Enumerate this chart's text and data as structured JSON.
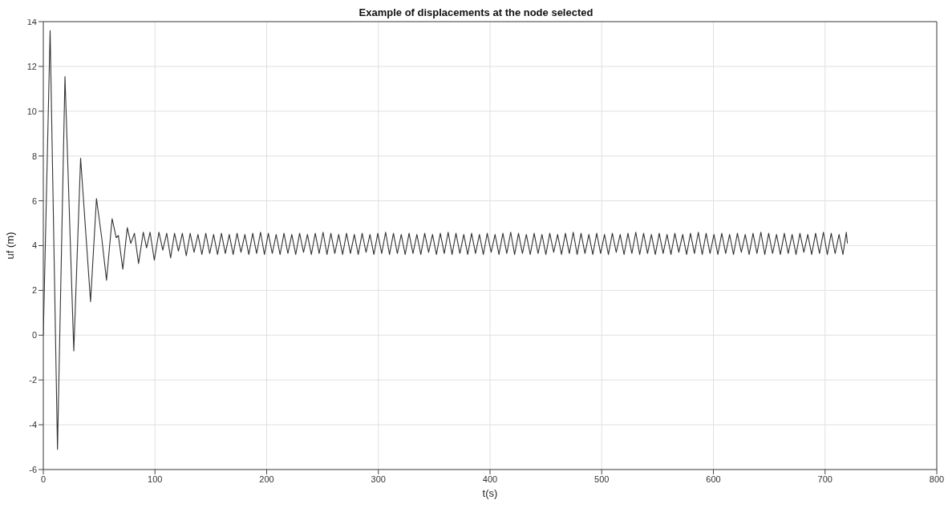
{
  "chart_data": {
    "type": "line",
    "title": "Example of displacements at the node selected",
    "xlabel": "t(s)",
    "ylabel": "uf (m)",
    "xlim": [
      0,
      800
    ],
    "xticks": [
      0,
      100,
      200,
      300,
      400,
      500,
      600,
      700,
      800
    ],
    "ylim": [
      -6,
      14
    ],
    "yticks": [
      -6,
      -4,
      -2,
      0,
      2,
      4,
      6,
      8,
      10,
      12,
      14
    ],
    "grid": true,
    "marker": "none",
    "line_style": "solid",
    "series": [
      {
        "color": "#333333",
        "x": [
          0,
          6.1,
          12.7,
          19.4,
          27.3,
          33.4,
          42.3,
          47.6,
          52.3,
          56.6,
          61.6,
          65.3,
          67.2,
          71.2,
          75.2,
          78.3,
          81.6,
          85.3,
          89.5,
          92.5,
          95.6,
          99.4,
          103.5,
          107,
          110.5,
          114,
          117.5,
          121,
          124.5,
          128,
          131.5,
          135,
          138.5,
          142,
          145.5,
          149,
          152.5,
          156,
          159.5,
          163,
          166.5,
          170,
          173.5,
          177,
          180.5,
          184,
          187.5,
          191,
          194.5,
          198,
          201.5,
          205,
          208.5,
          212,
          215.5,
          219,
          222.5,
          226,
          229.5,
          233,
          236.5,
          240,
          243.5,
          247,
          250.5,
          254,
          257.5,
          261,
          264.5,
          268,
          271.5,
          275,
          278.5,
          282,
          285.5,
          289,
          292.5,
          296,
          299.5,
          303,
          306.5,
          310,
          313.5,
          317,
          320.5,
          324,
          327.5,
          331,
          334.5,
          338,
          341.5,
          345,
          348.5,
          352,
          355.5,
          359,
          362.5,
          366,
          369.5,
          373,
          376.5,
          380,
          383.5,
          387,
          390.5,
          394,
          397.5,
          401,
          404.5,
          408,
          411.5,
          415,
          418.5,
          422,
          425.5,
          429,
          432.5,
          436,
          439.5,
          443,
          446.5,
          450,
          453.5,
          457,
          460.5,
          464,
          467.5,
          471,
          474.5,
          478,
          481.5,
          485,
          488.5,
          492,
          495.5,
          499,
          502.5,
          506,
          509.5,
          513,
          516.5,
          520,
          523.5,
          527,
          530.5,
          534,
          537.5,
          541,
          544.5,
          548,
          551.5,
          555,
          558.5,
          562,
          565.5,
          569,
          572.5,
          576,
          579.5,
          583,
          586.5,
          590,
          593.5,
          597,
          600.5,
          604,
          607.5,
          611,
          614.5,
          618,
          621.5,
          625,
          628.5,
          632,
          635.5,
          639,
          642.5,
          646,
          649.5,
          653,
          656.5,
          660,
          663.5,
          667,
          670.5,
          674,
          677.5,
          681,
          684.5,
          688,
          691.5,
          695,
          698.5,
          702,
          705.5,
          709,
          712.5,
          716,
          719,
          720
        ],
        "values": [
          0,
          13.6,
          -5.1,
          11.55,
          -0.7,
          7.9,
          1.5,
          6.1,
          4.35,
          2.45,
          5.2,
          4.35,
          4.45,
          2.95,
          4.8,
          4.1,
          4.55,
          3.2,
          4.6,
          3.9,
          4.6,
          3.35,
          4.6,
          3.8,
          4.55,
          3.45,
          4.55,
          3.75,
          4.55,
          3.55,
          4.55,
          3.7,
          4.5,
          3.6,
          4.55,
          3.65,
          4.5,
          3.6,
          4.55,
          3.65,
          4.5,
          3.6,
          4.55,
          3.7,
          4.5,
          3.6,
          4.55,
          3.65,
          4.6,
          3.6,
          4.55,
          3.65,
          4.5,
          3.6,
          4.55,
          3.65,
          4.5,
          3.6,
          4.55,
          3.7,
          4.5,
          3.6,
          4.55,
          3.65,
          4.6,
          3.6,
          4.55,
          3.65,
          4.5,
          3.6,
          4.55,
          3.65,
          4.5,
          3.6,
          4.55,
          3.7,
          4.5,
          3.6,
          4.55,
          3.65,
          4.6,
          3.6,
          4.55,
          3.65,
          4.5,
          3.6,
          4.55,
          3.65,
          4.5,
          3.6,
          4.55,
          3.7,
          4.5,
          3.6,
          4.55,
          3.65,
          4.6,
          3.6,
          4.55,
          3.65,
          4.5,
          3.6,
          4.55,
          3.65,
          4.5,
          3.6,
          4.55,
          3.7,
          4.5,
          3.6,
          4.55,
          3.65,
          4.6,
          3.6,
          4.55,
          3.65,
          4.5,
          3.6,
          4.55,
          3.65,
          4.5,
          3.6,
          4.55,
          3.7,
          4.5,
          3.6,
          4.55,
          3.65,
          4.6,
          3.6,
          4.55,
          3.65,
          4.5,
          3.6,
          4.55,
          3.65,
          4.5,
          3.6,
          4.55,
          3.7,
          4.5,
          3.6,
          4.55,
          3.65,
          4.6,
          3.6,
          4.55,
          3.65,
          4.5,
          3.6,
          4.55,
          3.65,
          4.5,
          3.6,
          4.55,
          3.7,
          4.5,
          3.6,
          4.55,
          3.65,
          4.6,
          3.6,
          4.55,
          3.65,
          4.5,
          3.6,
          4.55,
          3.65,
          4.5,
          3.6,
          4.55,
          3.7,
          4.5,
          3.6,
          4.55,
          3.65,
          4.6,
          3.6,
          4.55,
          3.65,
          4.5,
          3.6,
          4.55,
          3.65,
          4.5,
          3.6,
          4.55,
          3.7,
          4.5,
          3.6,
          4.55,
          3.65,
          4.6,
          3.6,
          4.55,
          3.65,
          4.5,
          3.6,
          4.6,
          4.1
        ]
      }
    ]
  }
}
